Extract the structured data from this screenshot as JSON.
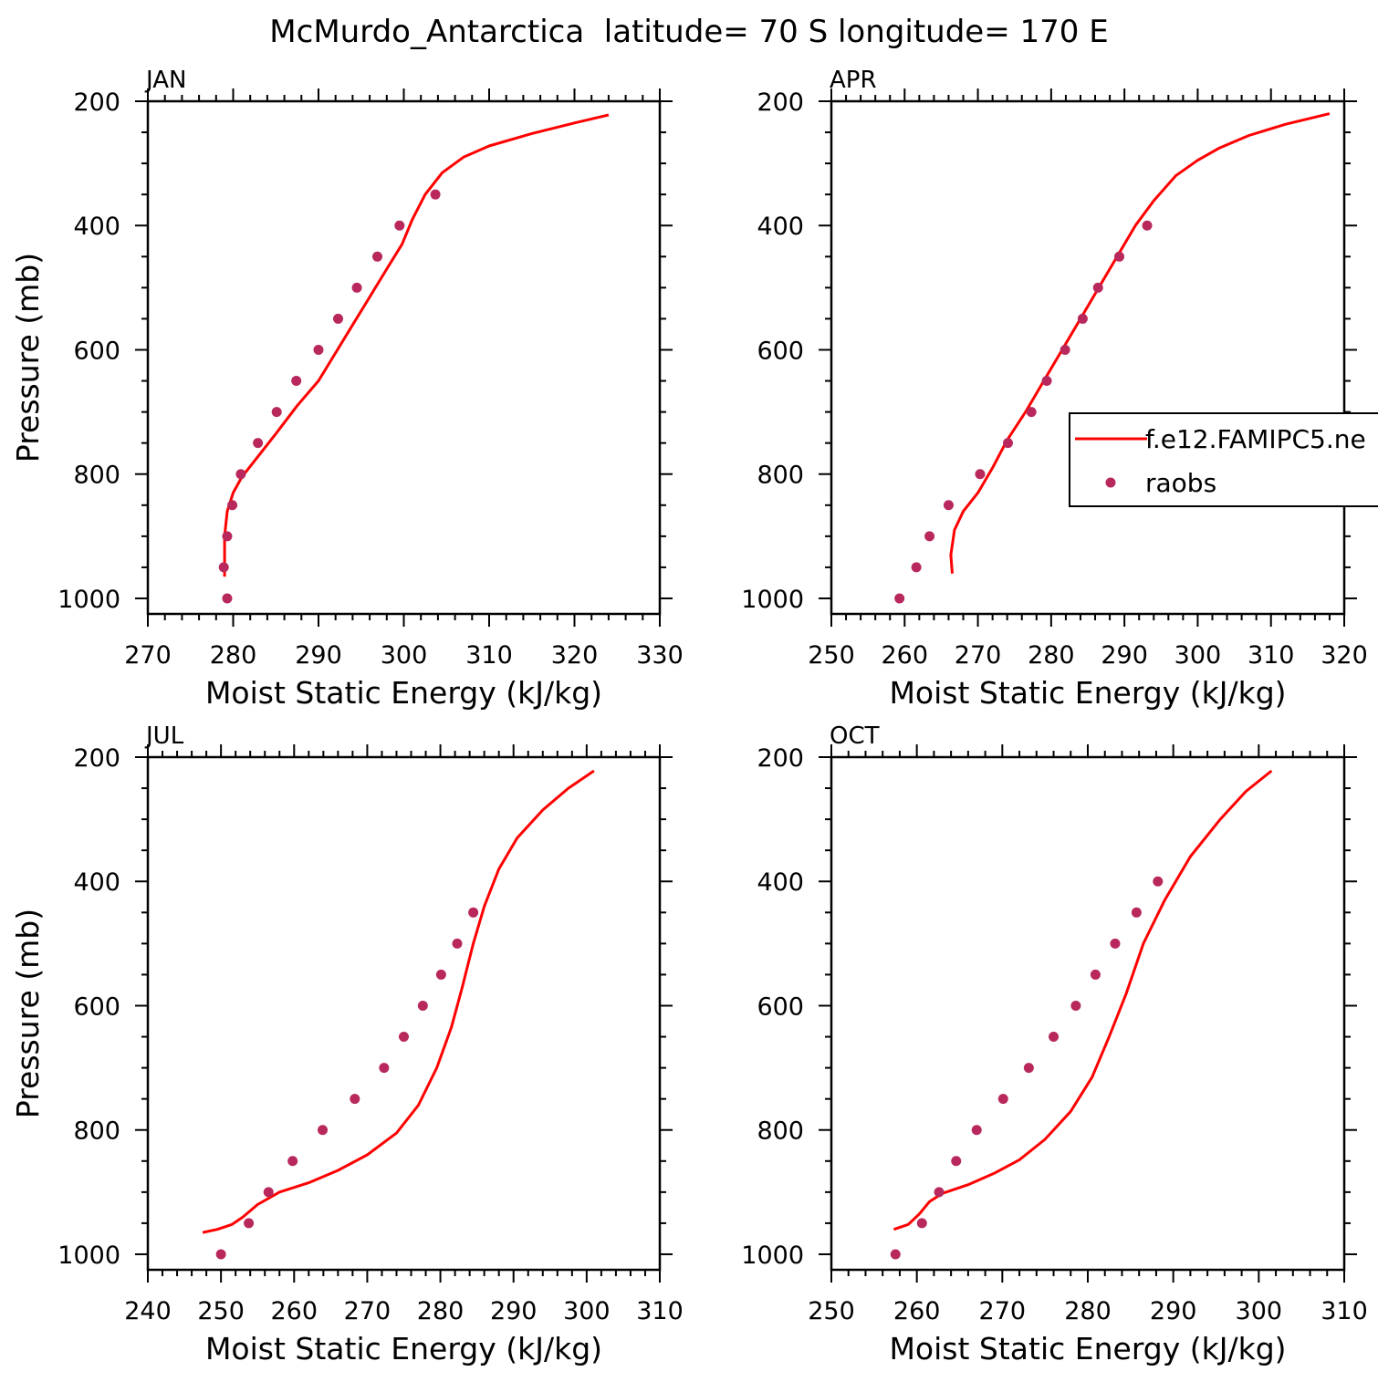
{
  "figure_title": "McMurdo_Antarctica  latitude= 70 S longitude= 170 E",
  "chart_data": [
    {
      "type": "line",
      "panel": "JAN",
      "xlabel": "Moist Static Energy (kJ/kg)",
      "ylabel": "Pressure (mb)",
      "xlim": [
        270,
        330
      ],
      "ylim": [
        200,
        1025
      ],
      "y_inverted": true,
      "xticks": [
        270,
        280,
        290,
        300,
        310,
        320,
        330
      ],
      "yticks": [
        200,
        400,
        600,
        800,
        1000
      ],
      "series": [
        {
          "kind": "line",
          "color": "#ff0000",
          "points": [
            [
              279,
              965
            ],
            [
              279,
              940
            ],
            [
              279,
              900
            ],
            [
              279.3,
              860
            ],
            [
              280,
              830
            ],
            [
              281,
              805
            ],
            [
              283,
              770
            ],
            [
              285,
              735
            ],
            [
              287.5,
              690
            ],
            [
              290,
              650
            ],
            [
              292,
              605
            ],
            [
              294,
              560
            ],
            [
              296,
              515
            ],
            [
              298,
              470
            ],
            [
              299.8,
              430
            ],
            [
              301,
              390
            ],
            [
              302.5,
              350
            ],
            [
              304.5,
              315
            ],
            [
              307,
              290
            ],
            [
              310,
              272
            ],
            [
              315,
              252
            ],
            [
              320,
              235
            ],
            [
              324,
              222
            ]
          ]
        },
        {
          "kind": "scatter",
          "color": "#b8285c",
          "points": [
            [
              279.3,
              1000
            ],
            [
              278.9,
              950
            ],
            [
              279.3,
              900
            ],
            [
              279.9,
              850
            ],
            [
              280.9,
              800
            ],
            [
              282.9,
              750
            ],
            [
              285.1,
              700
            ],
            [
              287.4,
              650
            ],
            [
              290,
              600
            ],
            [
              292.3,
              550
            ],
            [
              294.5,
              500
            ],
            [
              296.9,
              450
            ],
            [
              299.5,
              400
            ],
            [
              303.7,
              350
            ]
          ]
        }
      ]
    },
    {
      "type": "line",
      "panel": "APR",
      "xlabel": "Moist Static Energy (kJ/kg)",
      "ylabel": "",
      "xlim": [
        250,
        320
      ],
      "ylim": [
        200,
        1025
      ],
      "y_inverted": true,
      "xticks": [
        250,
        260,
        270,
        280,
        290,
        300,
        310,
        320
      ],
      "yticks": [
        200,
        400,
        600,
        800,
        1000
      ],
      "series": [
        {
          "kind": "line",
          "color": "#ff0000",
          "points": [
            [
              266.5,
              960
            ],
            [
              266.3,
              930
            ],
            [
              266.8,
              890
            ],
            [
              268,
              860
            ],
            [
              270,
              830
            ],
            [
              272,
              790
            ],
            [
              274,
              745
            ],
            [
              276.5,
              700
            ],
            [
              279,
              650
            ],
            [
              281.5,
              600
            ],
            [
              284,
              550
            ],
            [
              286.5,
              500
            ],
            [
              289,
              450
            ],
            [
              291.5,
              400
            ],
            [
              294,
              360
            ],
            [
              297,
              320
            ],
            [
              300,
              295
            ],
            [
              303,
              275
            ],
            [
              307,
              255
            ],
            [
              312,
              237
            ],
            [
              318,
              220
            ]
          ]
        },
        {
          "kind": "scatter",
          "color": "#b8285c",
          "points": [
            [
              259.3,
              1000
            ],
            [
              261.6,
              950
            ],
            [
              263.4,
              900
            ],
            [
              266,
              850
            ],
            [
              270.3,
              800
            ],
            [
              274.1,
              750
            ],
            [
              277.3,
              700
            ],
            [
              279.4,
              650
            ],
            [
              281.9,
              600
            ],
            [
              284.3,
              550
            ],
            [
              286.4,
              500
            ],
            [
              289.3,
              450
            ],
            [
              293.1,
              400
            ]
          ]
        }
      ],
      "legend": {
        "placement": "right",
        "entries": [
          {
            "label": "f.e12.FAMIPC5.ne",
            "kind": "line",
            "color": "#ff0000"
          },
          {
            "label": "raobs",
            "kind": "marker",
            "color": "#b8285c"
          }
        ]
      }
    },
    {
      "type": "line",
      "panel": "JUL",
      "xlabel": "Moist Static Energy (kJ/kg)",
      "ylabel": "Pressure (mb)",
      "xlim": [
        240,
        310
      ],
      "ylim": [
        200,
        1025
      ],
      "y_inverted": true,
      "xticks": [
        240,
        250,
        260,
        270,
        280,
        290,
        300,
        310
      ],
      "yticks": [
        200,
        400,
        600,
        800,
        1000
      ],
      "series": [
        {
          "kind": "line",
          "color": "#ff0000",
          "points": [
            [
              247.5,
              965
            ],
            [
              249.5,
              960
            ],
            [
              251.5,
              952
            ],
            [
              253,
              940
            ],
            [
              255,
              920
            ],
            [
              258,
              900
            ],
            [
              262,
              885
            ],
            [
              266,
              865
            ],
            [
              270,
              840
            ],
            [
              274,
              805
            ],
            [
              277,
              760
            ],
            [
              279.5,
              700
            ],
            [
              281.5,
              635
            ],
            [
              283,
              570
            ],
            [
              284.5,
              500
            ],
            [
              286,
              440
            ],
            [
              288,
              380
            ],
            [
              290.5,
              330
            ],
            [
              294,
              285
            ],
            [
              297.5,
              250
            ],
            [
              301,
              222
            ]
          ]
        },
        {
          "kind": "scatter",
          "color": "#b8285c",
          "points": [
            [
              250,
              1000
            ],
            [
              253.8,
              950
            ],
            [
              256.5,
              900
            ],
            [
              259.8,
              850
            ],
            [
              263.9,
              800
            ],
            [
              268.3,
              750
            ],
            [
              272.3,
              700
            ],
            [
              275,
              650
            ],
            [
              277.6,
              600
            ],
            [
              280.1,
              550
            ],
            [
              282.3,
              500
            ],
            [
              284.5,
              450
            ]
          ]
        }
      ]
    },
    {
      "type": "line",
      "panel": "OCT",
      "xlabel": "Moist Static Energy (kJ/kg)",
      "ylabel": "",
      "xlim": [
        250,
        310
      ],
      "ylim": [
        200,
        1025
      ],
      "y_inverted": true,
      "xticks": [
        250,
        260,
        270,
        280,
        290,
        300,
        310
      ],
      "yticks": [
        200,
        400,
        600,
        800,
        1000
      ],
      "series": [
        {
          "kind": "line",
          "color": "#ff0000",
          "points": [
            [
              257.3,
              960
            ],
            [
              259,
              952
            ],
            [
              260.3,
              935
            ],
            [
              261.5,
              915
            ],
            [
              263,
              902
            ],
            [
              266,
              888
            ],
            [
              269,
              870
            ],
            [
              272,
              848
            ],
            [
              275,
              815
            ],
            [
              278,
              770
            ],
            [
              280.5,
              715
            ],
            [
              282.5,
              650
            ],
            [
              284.5,
              580
            ],
            [
              286.5,
              500
            ],
            [
              289,
              430
            ],
            [
              292,
              360
            ],
            [
              295.5,
              300
            ],
            [
              298.5,
              255
            ],
            [
              301.5,
              222
            ]
          ]
        },
        {
          "kind": "scatter",
          "color": "#b8285c",
          "points": [
            [
              257.5,
              1000
            ],
            [
              260.6,
              950
            ],
            [
              262.6,
              900
            ],
            [
              264.6,
              850
            ],
            [
              267,
              800
            ],
            [
              270.1,
              750
            ],
            [
              273.1,
              700
            ],
            [
              276,
              650
            ],
            [
              278.6,
              600
            ],
            [
              280.9,
              550
            ],
            [
              283.2,
              500
            ],
            [
              285.7,
              450
            ],
            [
              288.2,
              400
            ]
          ]
        }
      ]
    }
  ]
}
